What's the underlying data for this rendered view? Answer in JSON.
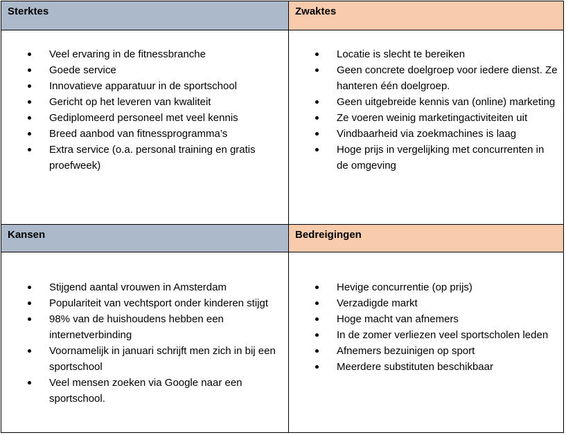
{
  "swot": {
    "sterktes": {
      "title": "Sterktes",
      "color": "#acb9ca",
      "items": [
        "Veel ervaring in de fitnessbranche",
        "Goede service",
        "Innovatieve apparatuur in de sportschool",
        "Gericht op het leveren van kwaliteit",
        "Gediplomeerd personeel met veel kennis",
        "Breed aanbod van fitnessprogramma’s",
        "Extra service (o.a. personal training en gratis proefweek)"
      ]
    },
    "zwaktes": {
      "title": "Zwaktes",
      "color": "#f8cbad",
      "items": [
        "Locatie is slecht te bereiken",
        "Geen concrete doelgroep voor iedere dienst. Ze hanteren één doelgroep.",
        "Geen uitgebreide kennis van (online) marketing",
        "Ze voeren weinig marketingactiviteiten uit",
        "Vindbaarheid via zoekmachines is laag",
        "Hoge prijs in vergelijking met concurrenten in de omgeving"
      ]
    },
    "kansen": {
      "title": "Kansen",
      "color": "#acb9ca",
      "items": [
        "Stijgend aantal vrouwen in Amsterdam",
        "Populariteit van vechtsport onder kinderen stijgt",
        "98% van de huishoudens hebben een internetverbinding",
        "Voornamelijk in januari schrijft men zich in bij een sportschool",
        "Veel mensen zoeken via Google naar een sportschool."
      ]
    },
    "bedreigingen": {
      "title": "Bedreigingen",
      "color": "#f8cbad",
      "items": [
        "Hevige concurrentie (op prijs)",
        "Verzadigde markt",
        "Hoge macht van afnemers",
        "In de zomer verliezen veel sportscholen leden",
        "Afnemers bezuinigen op sport",
        "Meerdere substituten beschikbaar"
      ]
    }
  }
}
